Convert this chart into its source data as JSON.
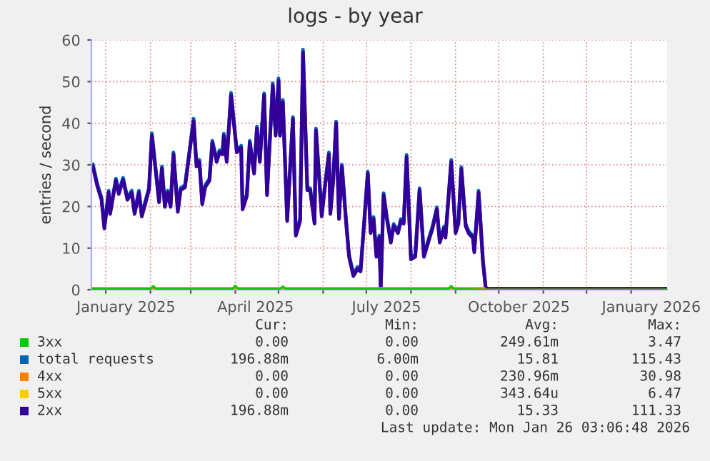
{
  "chart_data": {
    "type": "line",
    "title": "logs - by year",
    "ylabel": "entries / second",
    "xlim": [
      "2024-12-22",
      "2026-01-26"
    ],
    "ylim": [
      0,
      60
    ],
    "yticks": [
      0,
      10,
      20,
      30,
      40,
      50,
      60
    ],
    "xticks": [
      {
        "value": "2025-01-01",
        "label": null
      },
      {
        "value": "2025-01-15",
        "label": "January 2025"
      },
      {
        "value": "2025-02-01",
        "label": null
      },
      {
        "value": "2025-03-01",
        "label": null
      },
      {
        "value": "2025-04-01",
        "label": null
      },
      {
        "value": "2025-04-15",
        "label": "April 2025"
      },
      {
        "value": "2025-05-01",
        "label": null
      },
      {
        "value": "2025-06-01",
        "label": null
      },
      {
        "value": "2025-07-01",
        "label": null
      },
      {
        "value": "2025-07-15",
        "label": "July 2025"
      },
      {
        "value": "2025-08-01",
        "label": null
      },
      {
        "value": "2025-09-01",
        "label": null
      },
      {
        "value": "2025-10-01",
        "label": null
      },
      {
        "value": "2025-10-15",
        "label": "October 2025"
      },
      {
        "value": "2025-11-01",
        "label": null
      },
      {
        "value": "2025-12-01",
        "label": null
      },
      {
        "value": "2026-01-01",
        "label": null
      },
      {
        "value": "2026-01-15",
        "label": "January 2026"
      }
    ],
    "grid": true,
    "legend": "bottom",
    "marker": "none",
    "line_style": "solid",
    "series": [
      {
        "name": "3xx",
        "color": "#00cc00",
        "x": [
          "2024-12-23",
          "2025-02-01",
          "2025-02-03",
          "2025-02-05",
          "2025-03-30",
          "2025-04-01",
          "2025-04-03",
          "2025-05-02",
          "2025-05-04",
          "2025-05-06",
          "2025-08-27",
          "2025-08-29",
          "2025-08-31",
          "2025-09-22",
          "2026-01-26"
        ],
        "values": [
          0.2,
          0.2,
          0.9,
          0.2,
          0.2,
          1,
          0.2,
          0.2,
          0.8,
          0.2,
          0.2,
          0.9,
          0.2,
          0,
          0
        ]
      },
      {
        "name": "total requests",
        "color": "#0066b3",
        "x": [
          "2024-12-23",
          "2024-12-26",
          "2024-12-29",
          "2024-12-31",
          "2025-01-03",
          "2025-01-04",
          "2025-01-08",
          "2025-01-10",
          "2025-01-13",
          "2025-01-16",
          "2025-01-19",
          "2025-01-21",
          "2025-01-24",
          "2025-01-26",
          "2025-01-31",
          "2025-02-02",
          "2025-02-05",
          "2025-02-07",
          "2025-02-09",
          "2025-02-11",
          "2025-02-13",
          "2025-02-15",
          "2025-02-17",
          "2025-02-20",
          "2025-02-22",
          "2025-02-25",
          "2025-03-03",
          "2025-03-05",
          "2025-03-07",
          "2025-03-09",
          "2025-03-11",
          "2025-03-14",
          "2025-03-16",
          "2025-03-19",
          "2025-03-21",
          "2025-03-23",
          "2025-03-24",
          "2025-03-26",
          "2025-03-29",
          "2025-04-02",
          "2025-04-05",
          "2025-04-06",
          "2025-04-09",
          "2025-04-11",
          "2025-04-14",
          "2025-04-16",
          "2025-04-18",
          "2025-04-21",
          "2025-04-23",
          "2025-04-27",
          "2025-04-29",
          "2025-05-01",
          "2025-05-02",
          "2025-05-04",
          "2025-05-07",
          "2025-05-11",
          "2025-05-13",
          "2025-05-16",
          "2025-05-18",
          "2025-05-21",
          "2025-05-23",
          "2025-05-26",
          "2025-05-27",
          "2025-05-31",
          "2025-06-02",
          "2025-06-05",
          "2025-06-06",
          "2025-06-08",
          "2025-06-10",
          "2025-06-12",
          "2025-06-14",
          "2025-06-17",
          "2025-06-19",
          "2025-06-22",
          "2025-06-25",
          "2025-06-27",
          "2025-06-29",
          "2025-07-02",
          "2025-07-04",
          "2025-07-06",
          "2025-07-08",
          "2025-07-10",
          "2025-07-11",
          "2025-07-13",
          "2025-07-15",
          "2025-07-18",
          "2025-07-20",
          "2025-07-23",
          "2025-07-25",
          "2025-07-27",
          "2025-07-29",
          "2025-08-01",
          "2025-08-04",
          "2025-08-07",
          "2025-08-10",
          "2025-08-14",
          "2025-08-16",
          "2025-08-19",
          "2025-08-21",
          "2025-08-24",
          "2025-08-25",
          "2025-08-29",
          "2025-09-01",
          "2025-09-03",
          "2025-09-05",
          "2025-09-08",
          "2025-09-10",
          "2025-09-13",
          "2025-09-14",
          "2025-09-17",
          "2025-09-20",
          "2025-09-22",
          "2026-01-26"
        ],
        "values": [
          30.1,
          25.5,
          22.1,
          15.2,
          23.8,
          18.7,
          26.7,
          23.5,
          26.9,
          22.1,
          23.8,
          18.7,
          23.8,
          18.1,
          24.5,
          37.6,
          27.9,
          21.5,
          29.6,
          20.4,
          23.8,
          20.4,
          33,
          19.2,
          24.5,
          25.1,
          41.1,
          30.1,
          31.2,
          21,
          25.1,
          26.7,
          35.8,
          31.2,
          33.5,
          33,
          37.5,
          31.2,
          47.3,
          33.5,
          34.6,
          19.8,
          23,
          35.8,
          28.4,
          39.2,
          31.2,
          47.2,
          23.2,
          49.6,
          37.5,
          50.8,
          37.5,
          45.6,
          17,
          41.5,
          13.5,
          17,
          57.7,
          24.4,
          24.4,
          16.4,
          38.7,
          18.1,
          24.4,
          33,
          18.7,
          26.7,
          40.4,
          17.5,
          30.1,
          16.4,
          8.4,
          3.8,
          5.5,
          4.9,
          14.1,
          28.4,
          14.1,
          17.5,
          8.4,
          13,
          0.5,
          23.2,
          18.1,
          11.8,
          15.8,
          14.1,
          17,
          16.4,
          32.4,
          7.8,
          8.4,
          24.4,
          8.4,
          13,
          15.2,
          19.8,
          11.8,
          15.2,
          13,
          31.2,
          14.1,
          16.4,
          29.5,
          15.8,
          14.1,
          13,
          9.5,
          23.8,
          7.2,
          0.2,
          0.2
        ]
      },
      {
        "name": "4xx",
        "color": "#ff8000",
        "x": [
          "2024-12-23",
          "2025-03-01",
          "2025-06-01",
          "2025-09-21",
          "2025-09-22",
          "2026-01-26"
        ],
        "values": [
          0.4,
          0.4,
          0.4,
          0.4,
          0,
          0
        ]
      },
      {
        "name": "5xx",
        "color": "#ffcc00"
      },
      {
        "name": "2xx",
        "color": "#330099",
        "x": [
          "2024-12-23",
          "2024-12-26",
          "2024-12-29",
          "2024-12-31",
          "2025-01-03",
          "2025-01-04",
          "2025-01-08",
          "2025-01-10",
          "2025-01-13",
          "2025-01-16",
          "2025-01-19",
          "2025-01-21",
          "2025-01-24",
          "2025-01-26",
          "2025-01-31",
          "2025-02-02",
          "2025-02-05",
          "2025-02-07",
          "2025-02-09",
          "2025-02-11",
          "2025-02-13",
          "2025-02-15",
          "2025-02-17",
          "2025-02-20",
          "2025-02-22",
          "2025-02-25",
          "2025-03-03",
          "2025-03-05",
          "2025-03-07",
          "2025-03-09",
          "2025-03-11",
          "2025-03-14",
          "2025-03-16",
          "2025-03-19",
          "2025-03-21",
          "2025-03-23",
          "2025-03-24",
          "2025-03-26",
          "2025-03-29",
          "2025-04-02",
          "2025-04-05",
          "2025-04-06",
          "2025-04-09",
          "2025-04-11",
          "2025-04-14",
          "2025-04-16",
          "2025-04-18",
          "2025-04-21",
          "2025-04-23",
          "2025-04-27",
          "2025-04-29",
          "2025-05-01",
          "2025-05-02",
          "2025-05-04",
          "2025-05-07",
          "2025-05-11",
          "2025-05-13",
          "2025-05-16",
          "2025-05-18",
          "2025-05-21",
          "2025-05-23",
          "2025-05-26",
          "2025-05-27",
          "2025-05-31",
          "2025-06-02",
          "2025-06-05",
          "2025-06-06",
          "2025-06-08",
          "2025-06-10",
          "2025-06-12",
          "2025-06-14",
          "2025-06-17",
          "2025-06-19",
          "2025-06-22",
          "2025-06-25",
          "2025-06-27",
          "2025-06-29",
          "2025-07-02",
          "2025-07-04",
          "2025-07-06",
          "2025-07-08",
          "2025-07-10",
          "2025-07-11",
          "2025-07-13",
          "2025-07-15",
          "2025-07-18",
          "2025-07-20",
          "2025-07-23",
          "2025-07-25",
          "2025-07-27",
          "2025-07-29",
          "2025-08-01",
          "2025-08-04",
          "2025-08-07",
          "2025-08-10",
          "2025-08-14",
          "2025-08-16",
          "2025-08-19",
          "2025-08-21",
          "2025-08-24",
          "2025-08-25",
          "2025-08-29",
          "2025-09-01",
          "2025-09-03",
          "2025-09-05",
          "2025-09-08",
          "2025-09-10",
          "2025-09-13",
          "2025-09-14",
          "2025-09-17",
          "2025-09-20",
          "2025-09-22",
          "2026-01-26"
        ],
        "values": [
          29.6,
          25,
          21.6,
          14.7,
          23.3,
          18.2,
          26.2,
          23,
          26.4,
          21.6,
          23.3,
          18.2,
          23.3,
          17.6,
          24,
          37,
          27.4,
          21,
          29.1,
          19.9,
          23.3,
          19.9,
          32.5,
          18.7,
          24,
          24.6,
          40.5,
          29.6,
          30.7,
          20.5,
          24.6,
          26.2,
          35.3,
          30.7,
          33,
          32.5,
          37,
          30.7,
          46.7,
          33,
          34.1,
          19.3,
          22.5,
          35.3,
          27.9,
          38.7,
          30.7,
          46.7,
          22.7,
          49,
          37,
          50.2,
          37,
          45,
          16.5,
          41,
          13,
          16.5,
          57,
          23.9,
          23.9,
          15.9,
          38.2,
          17.6,
          23.9,
          32.5,
          18.2,
          26.2,
          39.9,
          17,
          29.6,
          15.9,
          7.9,
          3.3,
          5,
          4.4,
          13.6,
          27.9,
          13.6,
          17,
          7.9,
          12.5,
          0,
          22.7,
          17.6,
          11.3,
          15.3,
          13.6,
          16.5,
          15.9,
          31.9,
          7.3,
          7.9,
          23.9,
          7.9,
          12.5,
          14.7,
          19.3,
          11.3,
          14.7,
          12.5,
          30.7,
          13.6,
          15.9,
          29,
          15.3,
          13.6,
          12.5,
          9,
          23.3,
          6.7,
          0.2,
          0.2
        ]
      }
    ],
    "annotations": [
      "Cur:",
      "Min:",
      "Avg:",
      "Max:",
      "0.00",
      "0.00",
      "249.61m",
      "3.47",
      "196.88m",
      "6.00m",
      "15.81",
      "115.43",
      "0.00",
      "0.00",
      "230.96m",
      "30.98",
      "0.00",
      "0.00",
      "343.64u",
      "6.47",
      "196.88m",
      "0.00",
      "15.33",
      "111.33",
      "Last update: Mon Jan 26 03:06:48 2026"
    ]
  }
}
